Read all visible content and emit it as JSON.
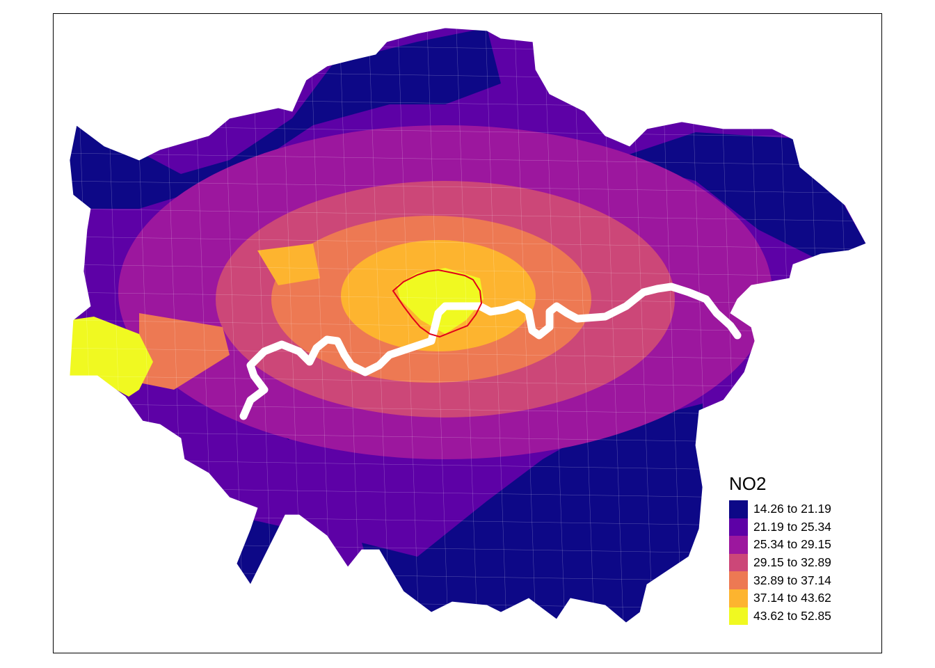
{
  "legend": {
    "title": "NO2",
    "classes": [
      {
        "label": "14.26 to 21.19",
        "color": "#0d0887"
      },
      {
        "label": "21.19 to 25.34",
        "color": "#5d01a6"
      },
      {
        "label": "25.34 to 29.15",
        "color": "#9c179e"
      },
      {
        "label": "29.15 to 32.89",
        "color": "#cc4778"
      },
      {
        "label": "32.89 to 37.14",
        "color": "#ed7953"
      },
      {
        "label": "37.14 to 43.62",
        "color": "#fdb42f"
      },
      {
        "label": "43.62 to 52.85",
        "color": "#f0f921"
      }
    ]
  },
  "map": {
    "subject": "London NO2 concentration choropleth",
    "river_color": "#ffffff",
    "highlight_outline_color": "#e0001a",
    "boundary_color": "#ffffff"
  }
}
